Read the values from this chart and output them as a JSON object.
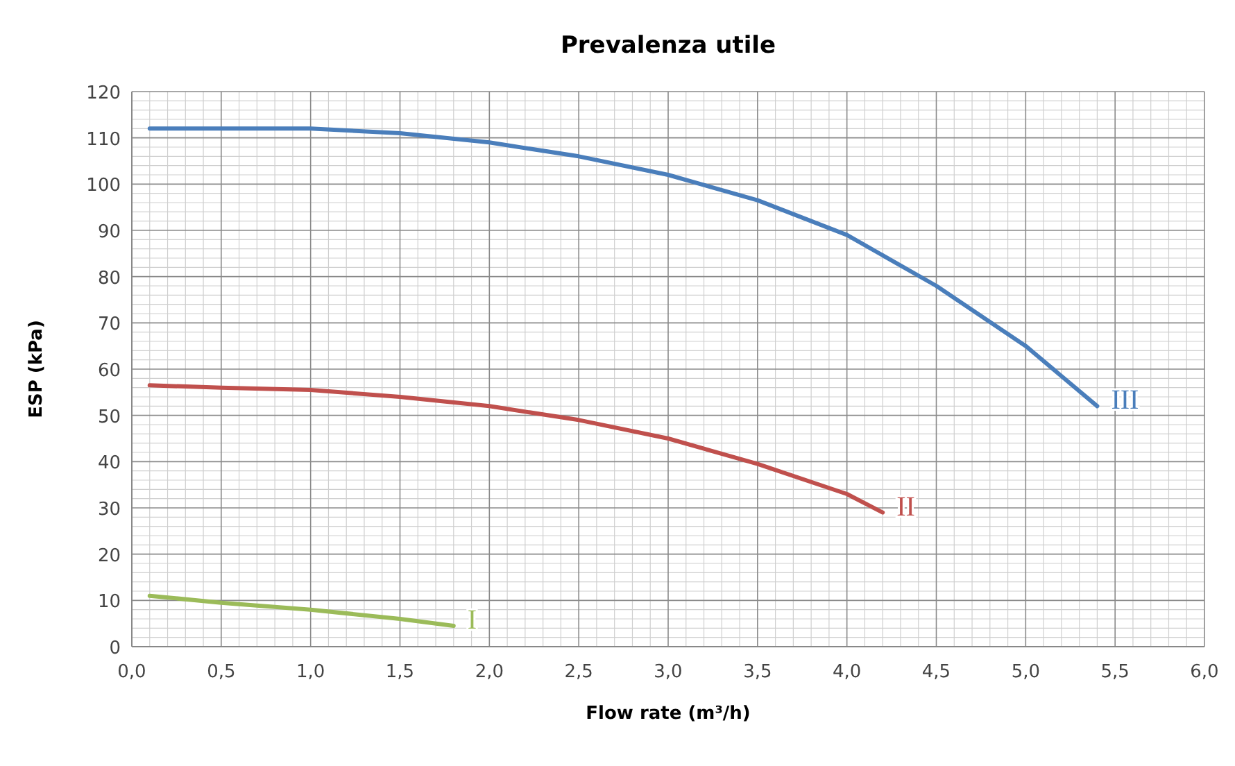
{
  "chart_data": {
    "type": "line",
    "title": "Prevalenza utile",
    "xlabel": "Flow rate (m³/h)",
    "ylabel": "ESP (kPa)",
    "xlim": [
      0,
      6
    ],
    "ylim": [
      0,
      120
    ],
    "xticks": [
      {
        "value": 0,
        "label": "0,0"
      },
      {
        "value": 0.5,
        "label": "0,5"
      },
      {
        "value": 1,
        "label": "1,0"
      },
      {
        "value": 1.5,
        "label": "1,5"
      },
      {
        "value": 2,
        "label": "2,0"
      },
      {
        "value": 2.5,
        "label": "2,5"
      },
      {
        "value": 3,
        "label": "3,0"
      },
      {
        "value": 3.5,
        "label": "3,5"
      },
      {
        "value": 4,
        "label": "4,0"
      },
      {
        "value": 4.5,
        "label": "4,5"
      },
      {
        "value": 5,
        "label": "5,0"
      },
      {
        "value": 5.5,
        "label": "5,5"
      },
      {
        "value": 6,
        "label": "6,0"
      }
    ],
    "yticks": [
      0,
      10,
      20,
      30,
      40,
      50,
      60,
      70,
      80,
      90,
      100,
      110,
      120
    ],
    "grid": true,
    "marker": "none",
    "series": [
      {
        "name": "I",
        "color": "#9bbb59",
        "x": [
          0.1,
          0.5,
          1.0,
          1.5,
          1.8
        ],
        "values": [
          11,
          9.5,
          8,
          6,
          4.5
        ]
      },
      {
        "name": "II",
        "color": "#c0504d",
        "x": [
          0.1,
          0.5,
          1.0,
          1.5,
          2.0,
          2.5,
          3.0,
          3.5,
          4.0,
          4.2
        ],
        "values": [
          56.5,
          56,
          55.5,
          54,
          52,
          49,
          45,
          39.5,
          33,
          29
        ]
      },
      {
        "name": "III",
        "color": "#4a7ebb",
        "x": [
          0.1,
          0.5,
          1.0,
          1.5,
          2.0,
          2.5,
          3.0,
          3.5,
          4.0,
          4.5,
          5.0,
          5.4
        ],
        "values": [
          112,
          112,
          112,
          111,
          109,
          106,
          102,
          96.5,
          89,
          78,
          65,
          52
        ]
      }
    ]
  }
}
